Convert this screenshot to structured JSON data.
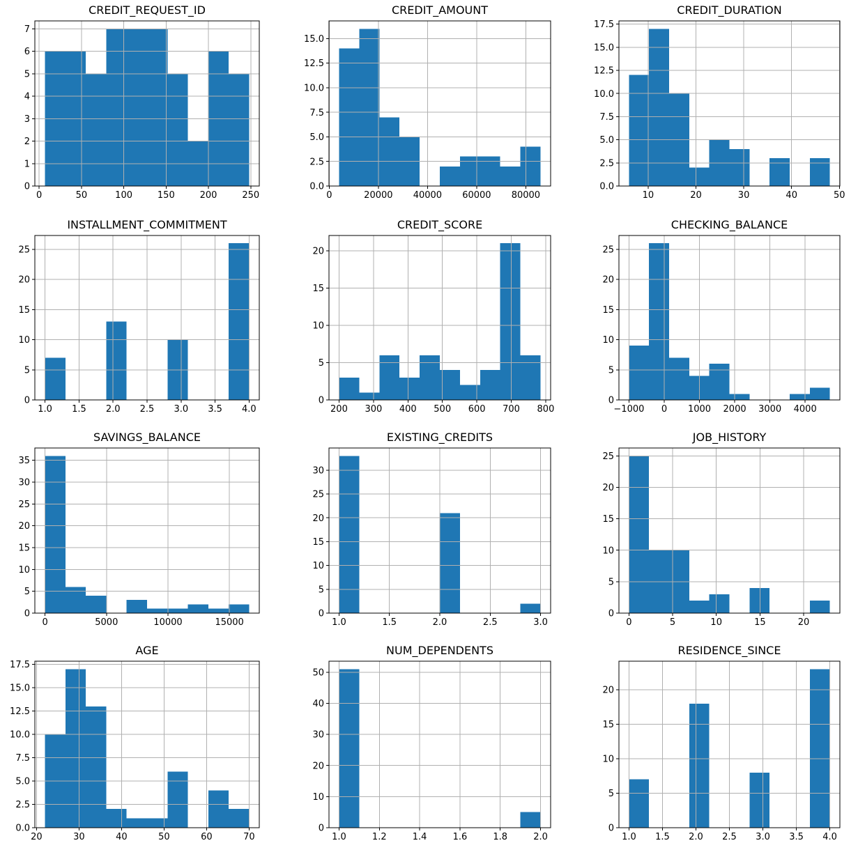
{
  "figure": {
    "background_color": "#ffffff",
    "bar_color": "#1f77b4",
    "grid_color": "#b0b0b0",
    "axis_color": "#000000",
    "text_color": "#000000",
    "layout": "4x3 histogram grid",
    "grid_on": true
  },
  "chart_data": [
    {
      "type": "bar",
      "subtype": "histogram",
      "title": "CREDIT_REQUEST_ID",
      "bin_edges": [
        7.0,
        31.1,
        55.2,
        79.3,
        103.4,
        127.5,
        151.6,
        175.7,
        199.8,
        223.9,
        248.0
      ],
      "values": [
        6,
        6,
        5,
        7,
        7,
        7,
        5,
        2,
        6,
        5
      ],
      "xlim": [
        -5.05,
        260.05
      ],
      "ylim": [
        0,
        7.35
      ],
      "x_tick_values": [
        0,
        50,
        100,
        150,
        200,
        250
      ],
      "x_tick_labels": [
        "0",
        "50",
        "100",
        "150",
        "200",
        "250"
      ],
      "y_tick_values": [
        0,
        1,
        2,
        3,
        4,
        5,
        6,
        7
      ],
      "y_tick_labels": [
        "0",
        "1",
        "2",
        "3",
        "4",
        "5",
        "6",
        "7"
      ]
    },
    {
      "type": "bar",
      "subtype": "histogram",
      "title": "CREDIT_AMOUNT",
      "bin_edges": [
        4000,
        12200,
        20400,
        28600,
        36800,
        45000,
        53200,
        61400,
        69600,
        77800,
        86000
      ],
      "values": [
        14,
        16,
        7,
        5,
        0,
        2,
        3,
        3,
        2,
        4
      ],
      "xlim": [
        -100,
        90100
      ],
      "ylim": [
        0,
        16.8
      ],
      "x_tick_values": [
        0,
        20000,
        40000,
        60000,
        80000
      ],
      "x_tick_labels": [
        "0",
        "20000",
        "40000",
        "60000",
        "80000"
      ],
      "y_tick_values": [
        0,
        2.5,
        5,
        7.5,
        10,
        12.5,
        15
      ],
      "y_tick_labels": [
        "0.0",
        "2.5",
        "5.0",
        "7.5",
        "10.0",
        "12.5",
        "15.0"
      ]
    },
    {
      "type": "bar",
      "subtype": "histogram",
      "title": "CREDIT_DURATION",
      "bin_edges": [
        6,
        10.2,
        14.4,
        18.6,
        22.8,
        27.0,
        31.2,
        35.4,
        39.6,
        43.8,
        48.0
      ],
      "values": [
        12,
        17,
        10,
        2,
        5,
        4,
        0,
        3,
        0,
        3
      ],
      "xlim": [
        3.9,
        50.1
      ],
      "ylim": [
        0,
        17.85
      ],
      "x_tick_values": [
        10,
        20,
        30,
        40,
        50
      ],
      "x_tick_labels": [
        "10",
        "20",
        "30",
        "40",
        "50"
      ],
      "y_tick_values": [
        0,
        2.5,
        5,
        7.5,
        10,
        12.5,
        15,
        17.5
      ],
      "y_tick_labels": [
        "0.0",
        "2.5",
        "5.0",
        "7.5",
        "10.0",
        "12.5",
        "15.0",
        "17.5"
      ]
    },
    {
      "type": "bar",
      "subtype": "histogram",
      "title": "INSTALLMENT_COMMITMENT",
      "bin_edges": [
        1.0,
        1.3,
        1.6,
        1.9,
        2.2,
        2.5,
        2.8,
        3.1,
        3.4,
        3.7,
        4.0
      ],
      "values": [
        7,
        0,
        0,
        13,
        0,
        0,
        10,
        0,
        0,
        26
      ],
      "xlim": [
        0.85,
        4.15
      ],
      "ylim": [
        0,
        27.3
      ],
      "x_tick_values": [
        1.0,
        1.5,
        2.0,
        2.5,
        3.0,
        3.5,
        4.0
      ],
      "x_tick_labels": [
        "1.0",
        "1.5",
        "2.0",
        "2.5",
        "3.0",
        "3.5",
        "4.0"
      ],
      "y_tick_values": [
        0,
        5,
        10,
        15,
        20,
        25
      ],
      "y_tick_labels": [
        "0",
        "5",
        "10",
        "15",
        "20",
        "25"
      ]
    },
    {
      "type": "bar",
      "subtype": "histogram",
      "title": "CREDIT_SCORE",
      "bin_edges": [
        200,
        258.5,
        317,
        375.5,
        434,
        492.5,
        551,
        609.5,
        668,
        726.5,
        785
      ],
      "values": [
        3,
        1,
        6,
        3,
        6,
        4,
        2,
        4,
        21,
        6
      ],
      "xlim": [
        170.75,
        814.25
      ],
      "ylim": [
        0,
        22.05
      ],
      "x_tick_values": [
        200,
        300,
        400,
        500,
        600,
        700,
        800
      ],
      "x_tick_labels": [
        "200",
        "300",
        "400",
        "500",
        "600",
        "700",
        "800"
      ],
      "y_tick_values": [
        0,
        5,
        10,
        15,
        20
      ],
      "y_tick_labels": [
        "0",
        "5",
        "10",
        "15",
        "20"
      ]
    },
    {
      "type": "bar",
      "subtype": "histogram",
      "title": "CHECKING_BALANCE",
      "bin_edges": [
        -1000,
        -430,
        140,
        710,
        1280,
        1850,
        2420,
        2990,
        3560,
        4130,
        4700
      ],
      "values": [
        9,
        26,
        7,
        4,
        6,
        1,
        0,
        0,
        1,
        2
      ],
      "xlim": [
        -1285,
        4985
      ],
      "ylim": [
        0,
        27.3
      ],
      "x_tick_values": [
        -1000,
        0,
        1000,
        2000,
        3000,
        4000
      ],
      "x_tick_labels": [
        "−1000",
        "0",
        "1000",
        "2000",
        "3000",
        "4000"
      ],
      "y_tick_values": [
        0,
        5,
        10,
        15,
        20,
        25
      ],
      "y_tick_labels": [
        "0",
        "5",
        "10",
        "15",
        "20",
        "25"
      ]
    },
    {
      "type": "bar",
      "subtype": "histogram",
      "title": "SAVINGS_BALANCE",
      "bin_edges": [
        0,
        1660,
        3320,
        4980,
        6640,
        8300,
        9960,
        11620,
        13280,
        14940,
        16600
      ],
      "values": [
        36,
        6,
        4,
        0,
        3,
        1,
        1,
        2,
        1,
        2
      ],
      "xlim": [
        -830,
        17430
      ],
      "ylim": [
        0,
        37.8
      ],
      "x_tick_values": [
        0,
        5000,
        10000,
        15000
      ],
      "x_tick_labels": [
        "0",
        "5000",
        "10000",
        "15000"
      ],
      "y_tick_values": [
        0,
        5,
        10,
        15,
        20,
        25,
        30,
        35
      ],
      "y_tick_labels": [
        "0",
        "5",
        "10",
        "15",
        "20",
        "25",
        "30",
        "35"
      ]
    },
    {
      "type": "bar",
      "subtype": "histogram",
      "title": "EXISTING_CREDITS",
      "bin_edges": [
        1.0,
        1.2,
        1.4,
        1.6,
        1.8,
        2.0,
        2.2,
        2.4,
        2.6,
        2.8,
        3.0
      ],
      "values": [
        33,
        0,
        0,
        0,
        0,
        21,
        0,
        0,
        0,
        2
      ],
      "xlim": [
        0.9,
        3.1
      ],
      "ylim": [
        0,
        34.65
      ],
      "x_tick_values": [
        1.0,
        1.5,
        2.0,
        2.5,
        3.0
      ],
      "x_tick_labels": [
        "1.0",
        "1.5",
        "2.0",
        "2.5",
        "3.0"
      ],
      "y_tick_values": [
        0,
        5,
        10,
        15,
        20,
        25,
        30
      ],
      "y_tick_labels": [
        "0",
        "5",
        "10",
        "15",
        "20",
        "25",
        "30"
      ]
    },
    {
      "type": "bar",
      "subtype": "histogram",
      "title": "JOB_HISTORY",
      "bin_edges": [
        0,
        2.3,
        4.6,
        6.9,
        9.2,
        11.5,
        13.8,
        16.1,
        18.4,
        20.7,
        23.0
      ],
      "values": [
        25,
        10,
        10,
        2,
        3,
        0,
        4,
        0,
        0,
        2
      ],
      "xlim": [
        -1.15,
        24.15
      ],
      "ylim": [
        0,
        26.25
      ],
      "x_tick_values": [
        0,
        5,
        10,
        15,
        20
      ],
      "x_tick_labels": [
        "0",
        "5",
        "10",
        "15",
        "20"
      ],
      "y_tick_values": [
        0,
        5,
        10,
        15,
        20,
        25
      ],
      "y_tick_labels": [
        "0",
        "5",
        "10",
        "15",
        "20",
        "25"
      ]
    },
    {
      "type": "bar",
      "subtype": "histogram",
      "title": "AGE",
      "bin_edges": [
        22,
        26.8,
        31.6,
        36.4,
        41.2,
        46.0,
        50.8,
        55.6,
        60.4,
        65.2,
        70.0
      ],
      "values": [
        10,
        17,
        13,
        2,
        1,
        1,
        6,
        0,
        4,
        2
      ],
      "xlim": [
        19.6,
        72.4
      ],
      "ylim": [
        0,
        17.85
      ],
      "x_tick_values": [
        20,
        30,
        40,
        50,
        60,
        70
      ],
      "x_tick_labels": [
        "20",
        "30",
        "40",
        "50",
        "60",
        "70"
      ],
      "y_tick_values": [
        0,
        2.5,
        5,
        7.5,
        10,
        12.5,
        15,
        17.5
      ],
      "y_tick_labels": [
        "0.0",
        "2.5",
        "5.0",
        "7.5",
        "10.0",
        "12.5",
        "15.0",
        "17.5"
      ]
    },
    {
      "type": "bar",
      "subtype": "histogram",
      "title": "NUM_DEPENDENTS",
      "bin_edges": [
        1.0,
        1.1,
        1.2,
        1.3,
        1.4,
        1.5,
        1.6,
        1.7,
        1.8,
        1.9,
        2.0
      ],
      "values": [
        51,
        0,
        0,
        0,
        0,
        0,
        0,
        0,
        0,
        5
      ],
      "xlim": [
        0.95,
        2.05
      ],
      "ylim": [
        0,
        53.55
      ],
      "x_tick_values": [
        1.0,
        1.2,
        1.4,
        1.6,
        1.8,
        2.0
      ],
      "x_tick_labels": [
        "1.0",
        "1.2",
        "1.4",
        "1.6",
        "1.8",
        "2.0"
      ],
      "y_tick_values": [
        0,
        10,
        20,
        30,
        40,
        50
      ],
      "y_tick_labels": [
        "0",
        "10",
        "20",
        "30",
        "40",
        "50"
      ]
    },
    {
      "type": "bar",
      "subtype": "histogram",
      "title": "RESIDENCE_SINCE",
      "bin_edges": [
        1.0,
        1.3,
        1.6,
        1.9,
        2.2,
        2.5,
        2.8,
        3.1,
        3.4,
        3.7,
        4.0
      ],
      "values": [
        7,
        0,
        0,
        18,
        0,
        0,
        8,
        0,
        0,
        23
      ],
      "xlim": [
        0.85,
        4.15
      ],
      "ylim": [
        0,
        24.15
      ],
      "x_tick_values": [
        1.0,
        1.5,
        2.0,
        2.5,
        3.0,
        3.5,
        4.0
      ],
      "x_tick_labels": [
        "1.0",
        "1.5",
        "2.0",
        "2.5",
        "3.0",
        "3.5",
        "4.0"
      ],
      "y_tick_values": [
        0,
        5,
        10,
        15,
        20
      ],
      "y_tick_labels": [
        "0",
        "5",
        "10",
        "15",
        "20"
      ]
    }
  ]
}
